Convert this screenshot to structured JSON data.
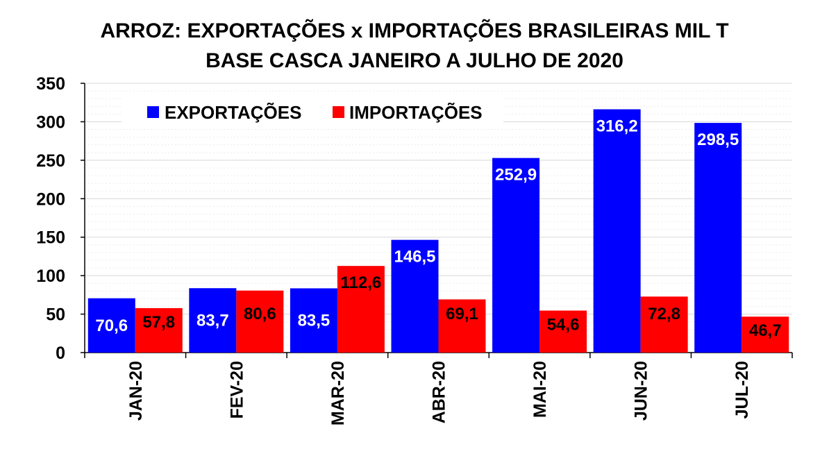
{
  "chart_data": {
    "type": "bar",
    "title": "ARROZ: EXPORTAÇÕES x IMPORTAÇÕES BRASILEIRAS MIL T",
    "subtitle": "BASE CASCA JANEIRO A JULHO DE 2020",
    "categories": [
      "JAN-20",
      "FEV-20",
      "MAR-20",
      "ABR-20",
      "MAI-20",
      "JUN-20",
      "JUL-20"
    ],
    "series": [
      {
        "name": "EXPORTAÇÕES",
        "color": "#0000ff",
        "label_color": "#ffffff",
        "values": [
          70.6,
          83.7,
          83.5,
          146.5,
          252.9,
          316.2,
          298.5
        ],
        "labels": [
          "70,6",
          "83,7",
          "83,5",
          "146,5",
          "252,9",
          "316,2",
          "298,5"
        ]
      },
      {
        "name": "IMPORTAÇÕES",
        "color": "#ff0000",
        "label_color": "#000000",
        "values": [
          57.8,
          80.6,
          112.6,
          69.1,
          54.6,
          72.8,
          46.7
        ],
        "labels": [
          "57,8",
          "80,6",
          "112,6",
          "69,1",
          "54,6",
          "72,8",
          "46,7"
        ]
      }
    ],
    "ylim": [
      0,
      350
    ],
    "yticks": [
      0,
      50,
      100,
      150,
      200,
      250,
      300,
      350
    ],
    "xlabel": "",
    "ylabel": "",
    "grid": true,
    "legend_position": "top-left"
  }
}
